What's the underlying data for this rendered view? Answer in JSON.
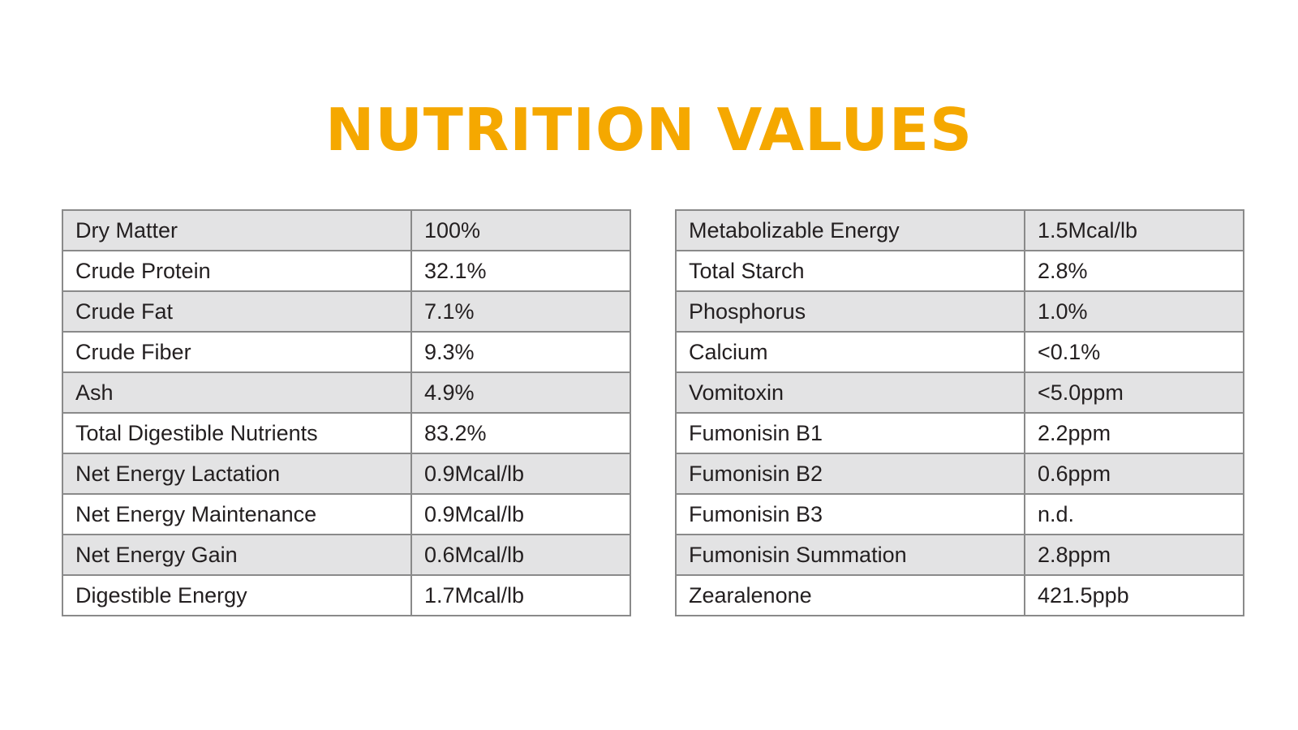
{
  "title": "NUTRITION VALUES",
  "colors": {
    "title": "#f5a800",
    "shaded_row": "#e3e3e4",
    "border": "#8a8a8a",
    "text": "#231f20"
  },
  "tables": [
    {
      "rows": [
        {
          "label": "Dry Matter",
          "value": "100%"
        },
        {
          "label": "Crude Protein",
          "value": "32.1%"
        },
        {
          "label": "Crude Fat",
          "value": "7.1%"
        },
        {
          "label": "Crude Fiber",
          "value": "9.3%"
        },
        {
          "label": "Ash",
          "value": "4.9%"
        },
        {
          "label": "Total Digestible Nutrients",
          "value": "83.2%"
        },
        {
          "label": "Net Energy Lactation",
          "value": "0.9Mcal/lb"
        },
        {
          "label": "Net Energy Maintenance",
          "value": "0.9Mcal/lb"
        },
        {
          "label": "Net Energy Gain",
          "value": "0.6Mcal/lb"
        },
        {
          "label": "Digestible Energy",
          "value": "1.7Mcal/lb"
        }
      ]
    },
    {
      "rows": [
        {
          "label": "Metabolizable Energy",
          "value": "1.5Mcal/lb"
        },
        {
          "label": "Total Starch",
          "value": "2.8%"
        },
        {
          "label": "Phosphorus",
          "value": "1.0%"
        },
        {
          "label": "Calcium",
          "value": "<0.1%"
        },
        {
          "label": "Vomitoxin",
          "value": "<5.0ppm"
        },
        {
          "label": "Fumonisin B1",
          "value": "2.2ppm"
        },
        {
          "label": "Fumonisin B2",
          "value": "0.6ppm"
        },
        {
          "label": "Fumonisin B3",
          "value": "n.d."
        },
        {
          "label": "Fumonisin Summation",
          "value": "2.8ppm"
        },
        {
          "label": "Zearalenone",
          "value": "421.5ppb"
        }
      ]
    }
  ]
}
